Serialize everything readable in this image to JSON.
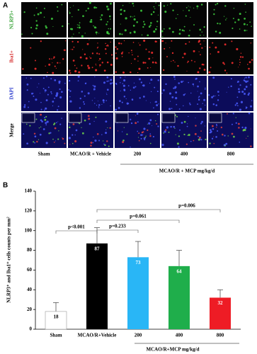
{
  "panel_a": {
    "label": "A",
    "rows": [
      "NLRP3+",
      "Iba1+",
      "DAPI",
      "Merge"
    ],
    "columns": [
      "Sham",
      "MCAO/R + Vehicle",
      "200",
      "400",
      "800"
    ],
    "group_label": "MCAO/R + MCP mg/kg/d"
  },
  "chart_data": {
    "type": "bar",
    "label": "B",
    "y_label": "NLRP3⁺ and Iba1⁺ cells counts per mm²",
    "categories": [
      "Sham",
      "MCAO/R+Vehicle",
      "200",
      "400",
      "800"
    ],
    "group_label": "MCAO/R+MCP mg/kg/d",
    "values": [
      18,
      87,
      73,
      64,
      32
    ],
    "errors": [
      9,
      16,
      16,
      16,
      8
    ],
    "colors": [
      "#ffffff",
      "#000000",
      "#29b6f6",
      "#1fae4b",
      "#ee1c25"
    ],
    "ylim": [
      0,
      140
    ],
    "yticks": [
      0,
      20,
      40,
      60,
      80,
      100,
      120,
      140
    ],
    "annotations": [
      "p<0.001",
      "p=0.233",
      "p=0.061",
      "p=0.006"
    ]
  }
}
